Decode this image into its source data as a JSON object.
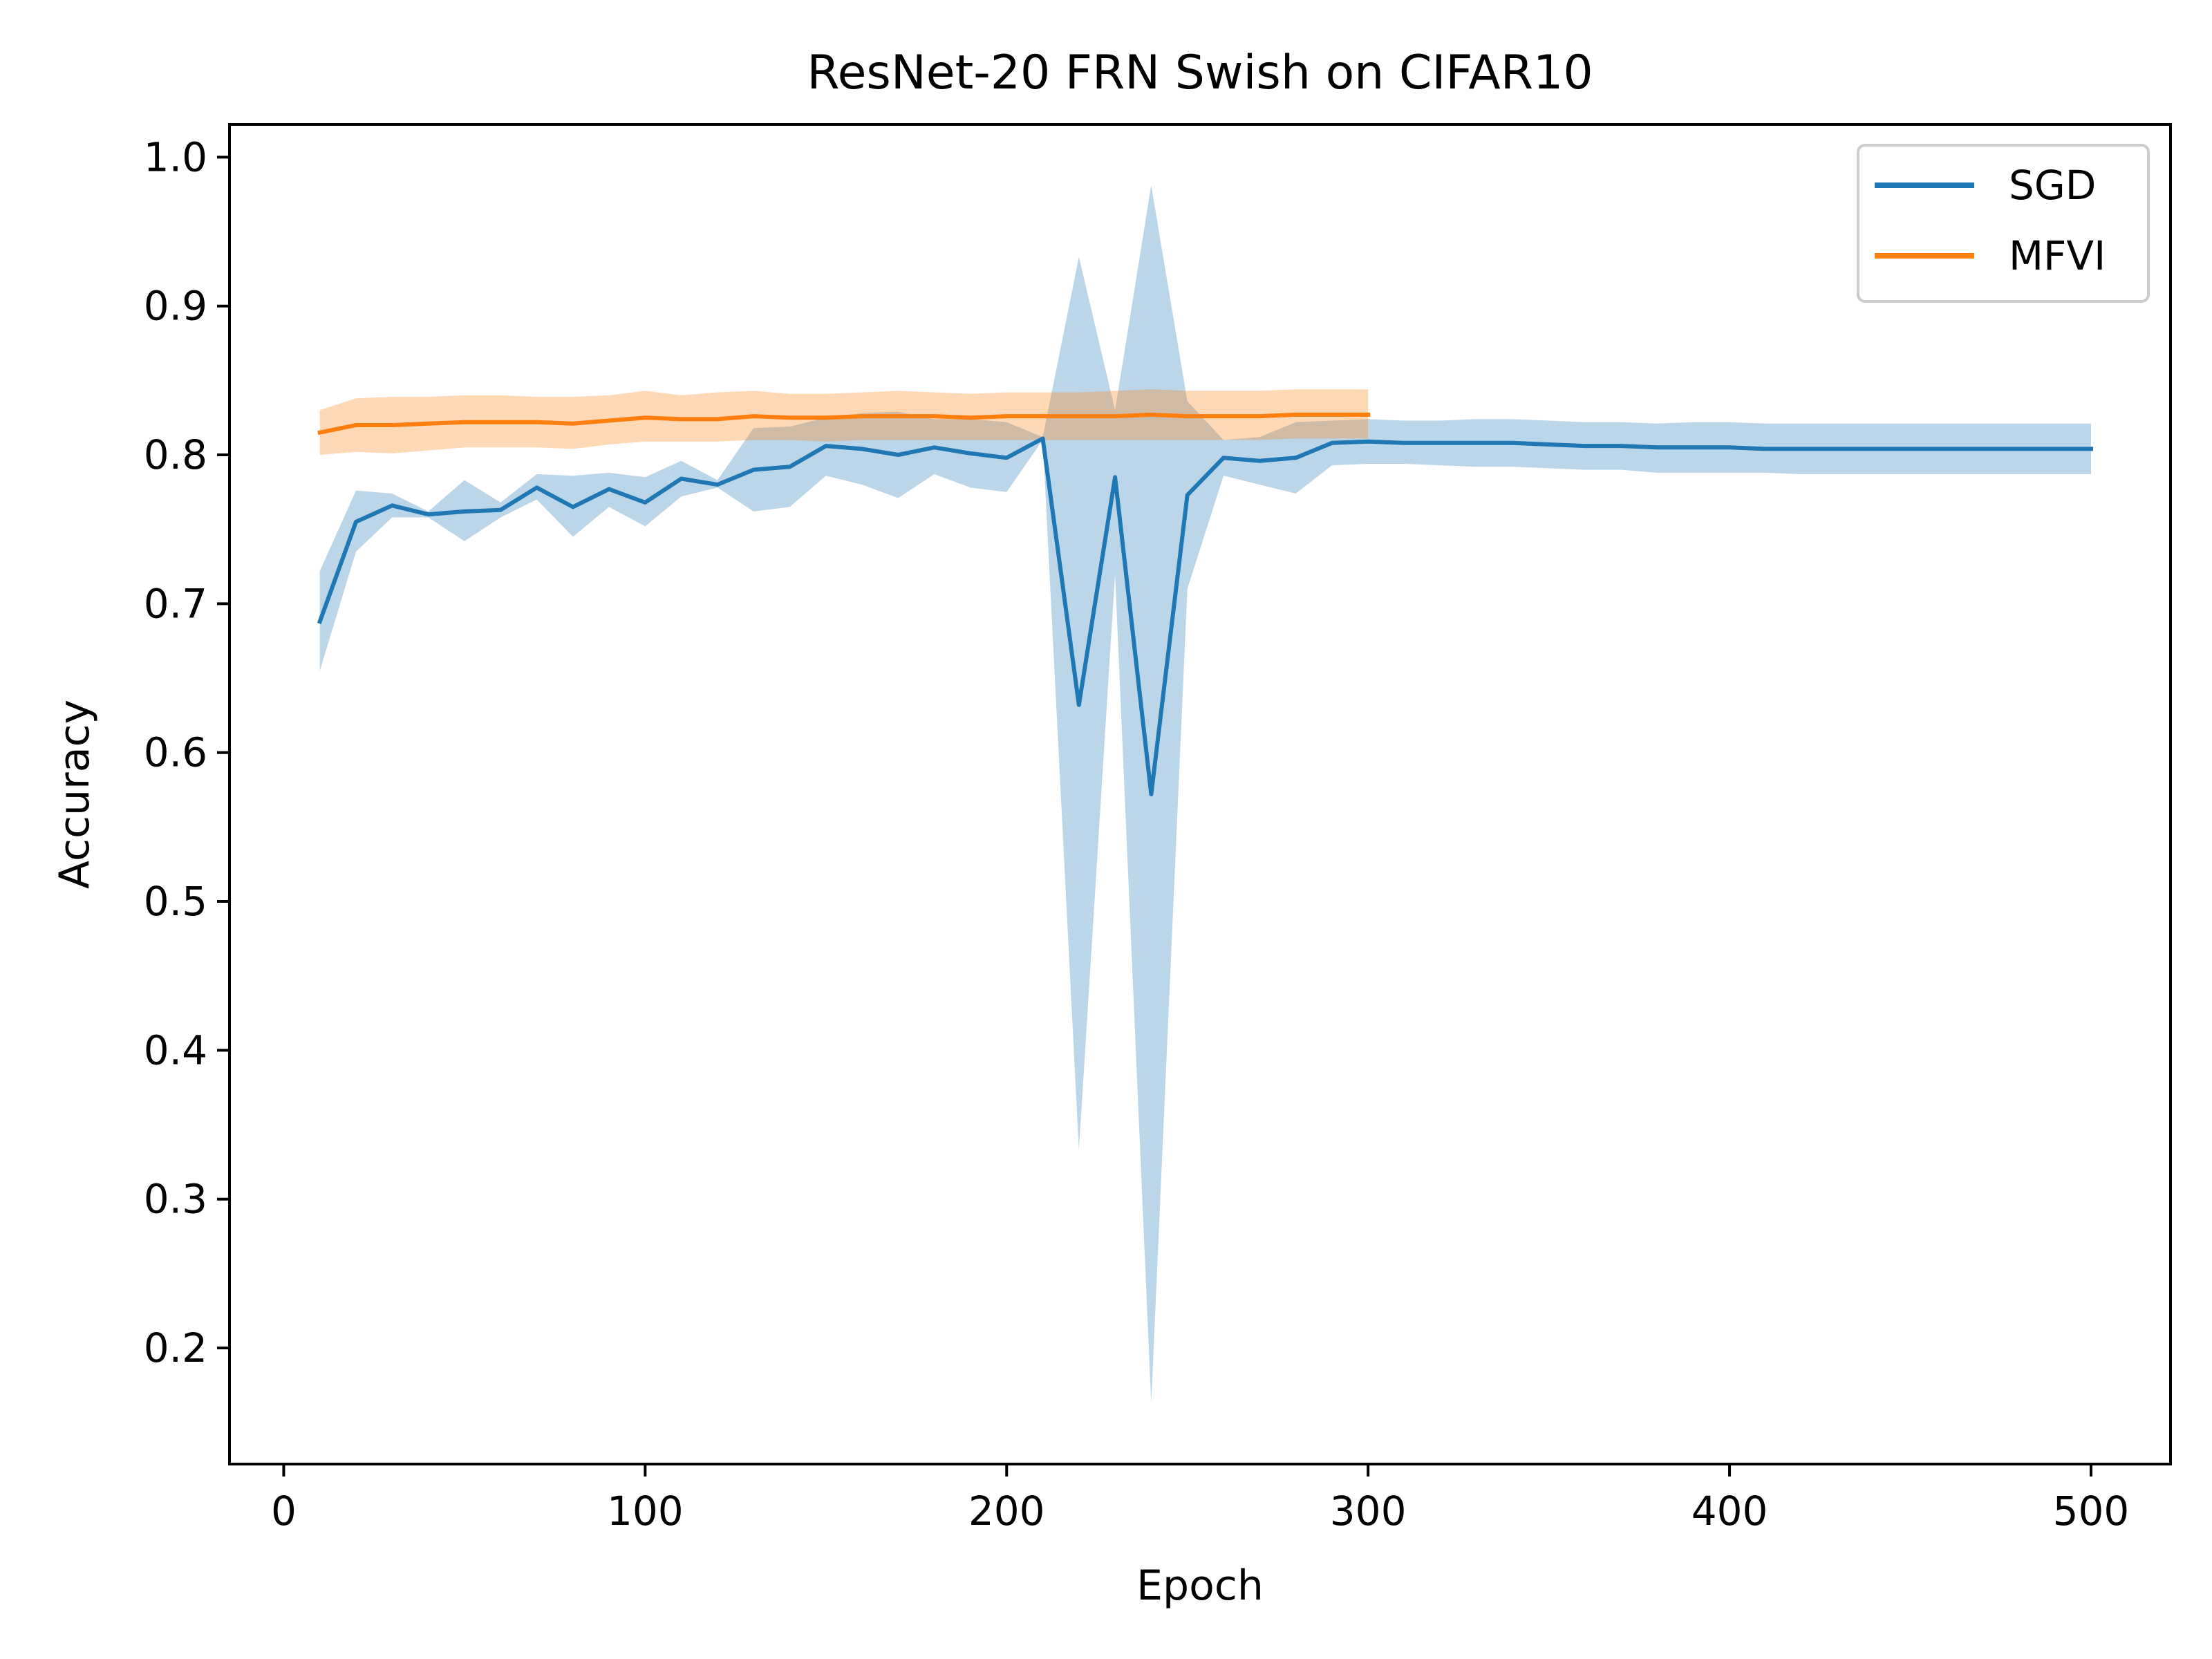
{
  "chart_data": {
    "type": "line",
    "title": "ResNet-20 FRN Swish on CIFAR10",
    "xlabel": "Epoch",
    "ylabel": "Accuracy",
    "xlim": [
      -15,
      522
    ],
    "ylim": [
      0.122,
      1.022
    ],
    "xticks": [
      0,
      100,
      200,
      300,
      400,
      500
    ],
    "yticks": [
      0.2,
      0.3,
      0.4,
      0.5,
      0.6,
      0.7,
      0.8,
      0.9,
      1.0
    ],
    "grid": false,
    "legend_position": "top-right",
    "series": [
      {
        "name": "SGD",
        "color": "#1f77b4",
        "x": [
          10,
          20,
          30,
          40,
          50,
          60,
          70,
          80,
          90,
          100,
          110,
          120,
          130,
          140,
          150,
          160,
          170,
          180,
          190,
          200,
          210,
          220,
          230,
          240,
          250,
          260,
          270,
          280,
          290,
          300,
          310,
          320,
          330,
          340,
          350,
          360,
          370,
          380,
          390,
          400,
          410,
          420,
          430,
          440,
          450,
          460,
          470,
          480,
          490,
          500
        ],
        "y": [
          0.688,
          0.755,
          0.766,
          0.76,
          0.762,
          0.763,
          0.778,
          0.765,
          0.777,
          0.768,
          0.784,
          0.78,
          0.79,
          0.792,
          0.806,
          0.804,
          0.8,
          0.805,
          0.801,
          0.798,
          0.811,
          0.632,
          0.785,
          0.572,
          0.773,
          0.798,
          0.796,
          0.798,
          0.808,
          0.809,
          0.808,
          0.808,
          0.808,
          0.808,
          0.807,
          0.806,
          0.806,
          0.805,
          0.805,
          0.805,
          0.804,
          0.804,
          0.804,
          0.804,
          0.804,
          0.804,
          0.804,
          0.804,
          0.804,
          0.804
        ],
        "lower": [
          0.655,
          0.735,
          0.758,
          0.758,
          0.742,
          0.758,
          0.77,
          0.745,
          0.765,
          0.752,
          0.772,
          0.778,
          0.762,
          0.765,
          0.786,
          0.78,
          0.771,
          0.787,
          0.778,
          0.775,
          0.81,
          0.333,
          0.72,
          0.163,
          0.71,
          0.786,
          0.78,
          0.774,
          0.793,
          0.794,
          0.794,
          0.793,
          0.792,
          0.792,
          0.791,
          0.79,
          0.79,
          0.788,
          0.788,
          0.788,
          0.788,
          0.787,
          0.787,
          0.787,
          0.787,
          0.787,
          0.787,
          0.787,
          0.787,
          0.787
        ],
        "upper": [
          0.722,
          0.776,
          0.774,
          0.762,
          0.783,
          0.768,
          0.787,
          0.786,
          0.788,
          0.785,
          0.796,
          0.783,
          0.818,
          0.819,
          0.825,
          0.828,
          0.829,
          0.824,
          0.824,
          0.822,
          0.812,
          0.933,
          0.83,
          0.981,
          0.836,
          0.81,
          0.812,
          0.822,
          0.823,
          0.824,
          0.823,
          0.823,
          0.824,
          0.824,
          0.823,
          0.822,
          0.822,
          0.821,
          0.822,
          0.822,
          0.821,
          0.821,
          0.821,
          0.821,
          0.821,
          0.821,
          0.821,
          0.821,
          0.821,
          0.821
        ]
      },
      {
        "name": "MFVI",
        "color": "#ff7f0e",
        "x": [
          10,
          20,
          30,
          40,
          50,
          60,
          70,
          80,
          90,
          100,
          110,
          120,
          130,
          140,
          150,
          160,
          170,
          180,
          190,
          200,
          210,
          220,
          230,
          240,
          250,
          260,
          270,
          280,
          290,
          300
        ],
        "y": [
          0.815,
          0.82,
          0.82,
          0.821,
          0.822,
          0.822,
          0.822,
          0.821,
          0.823,
          0.825,
          0.824,
          0.824,
          0.826,
          0.825,
          0.825,
          0.826,
          0.826,
          0.826,
          0.825,
          0.826,
          0.826,
          0.826,
          0.826,
          0.827,
          0.826,
          0.826,
          0.826,
          0.827,
          0.827,
          0.827
        ],
        "lower": [
          0.8,
          0.802,
          0.801,
          0.803,
          0.805,
          0.805,
          0.805,
          0.804,
          0.807,
          0.809,
          0.809,
          0.809,
          0.81,
          0.81,
          0.809,
          0.81,
          0.81,
          0.81,
          0.81,
          0.81,
          0.81,
          0.81,
          0.81,
          0.81,
          0.81,
          0.81,
          0.81,
          0.811,
          0.811,
          0.811
        ],
        "upper": [
          0.83,
          0.838,
          0.839,
          0.839,
          0.84,
          0.84,
          0.839,
          0.839,
          0.84,
          0.843,
          0.84,
          0.842,
          0.843,
          0.841,
          0.841,
          0.842,
          0.843,
          0.842,
          0.841,
          0.842,
          0.842,
          0.842,
          0.843,
          0.844,
          0.843,
          0.843,
          0.843,
          0.844,
          0.844,
          0.844
        ]
      }
    ]
  }
}
